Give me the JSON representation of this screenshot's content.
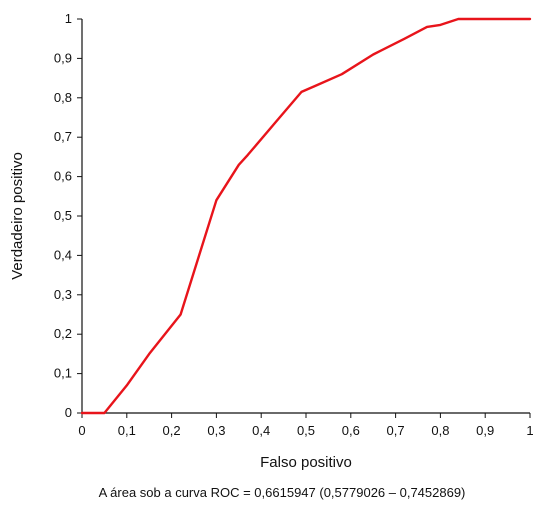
{
  "chart_data": {
    "type": "line",
    "title": "",
    "xlabel": "Falso positivo",
    "ylabel": "Verdadeiro positivo",
    "xlim": [
      0,
      1
    ],
    "ylim": [
      0,
      1
    ],
    "grid": false,
    "x_ticks": [
      "0",
      "0,1",
      "0,2",
      "0,3",
      "0,4",
      "0,5",
      "0,6",
      "0,7",
      "0,8",
      "0,9",
      "1"
    ],
    "y_ticks": [
      "0",
      "0,1",
      "0,2",
      "0,3",
      "0,4",
      "0,5",
      "0,6",
      "0,7",
      "0,8",
      "0,9",
      "1"
    ],
    "series": [
      {
        "color": "#e8141b",
        "x": [
          0,
          0.05,
          0.1,
          0.15,
          0.22,
          0.3,
          0.35,
          0.37,
          0.43,
          0.49,
          0.52,
          0.58,
          0.65,
          0.72,
          0.77,
          0.8,
          0.84,
          1.0
        ],
        "y": [
          0,
          0,
          0.07,
          0.15,
          0.25,
          0.54,
          0.63,
          0.655,
          0.735,
          0.815,
          0.83,
          0.86,
          0.91,
          0.95,
          0.98,
          0.985,
          1.0,
          1.0
        ]
      }
    ],
    "annotation": "A área sob a curva ROC = 0,6615947 (0,5779026 – 0,7452869)"
  }
}
